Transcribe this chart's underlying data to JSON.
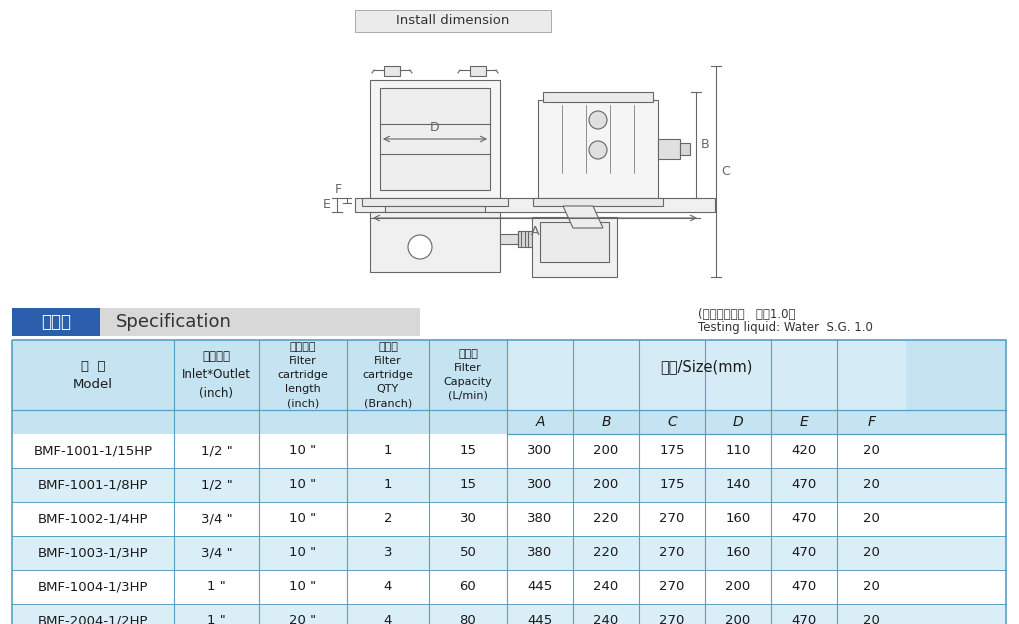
{
  "title": "Install dimension",
  "spec_label_cn": "规格表",
  "spec_label_en": "Specification",
  "testing_liquid_cn": "(測試流體：水   比重1.0）",
  "testing_liquid_en": "Testing liquid: Water  S.G. 1.0",
  "spec_box_bg": "#2b5fad",
  "spec_box_text": "#ffffff",
  "table_border_color": "#5a9fc0",
  "table_header_bg": "#c5e3f0",
  "table_row_alt": "#daeef8",
  "rows": [
    [
      "BMF-1001-1/15HP",
      "1/2 \"",
      "10 \"",
      "1",
      "15",
      "300",
      "200",
      "175",
      "110",
      "420",
      "20"
    ],
    [
      "BMF-1001-1/8HP",
      "1/2 \"",
      "10 \"",
      "1",
      "15",
      "300",
      "200",
      "175",
      "140",
      "470",
      "20"
    ],
    [
      "BMF-1002-1/4HP",
      "3/4 \"",
      "10 \"",
      "2",
      "30",
      "380",
      "220",
      "270",
      "160",
      "470",
      "20"
    ],
    [
      "BMF-1003-1/3HP",
      "3/4 \"",
      "10 \"",
      "3",
      "50",
      "380",
      "220",
      "270",
      "160",
      "470",
      "20"
    ],
    [
      "BMF-1004-1/3HP",
      "1 \"",
      "10 \"",
      "4",
      "60",
      "445",
      "240",
      "270",
      "200",
      "470",
      "20"
    ],
    [
      "BMF-2004-1/2HP",
      "1 \"",
      "20 \"",
      "4",
      "80",
      "445",
      "240",
      "270",
      "200",
      "470",
      "20"
    ]
  ],
  "bg_color": "#ffffff",
  "lc": "#666666",
  "lw": 0.8
}
